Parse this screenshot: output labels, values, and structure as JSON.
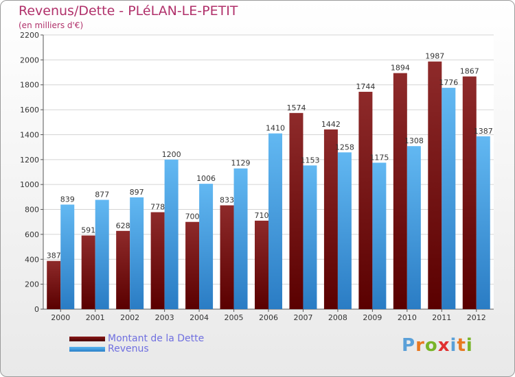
{
  "chart_data": {
    "type": "bar",
    "title": "Revenus/Dette - PLéLAN-LE-PETIT",
    "subtitle": "(en milliers d'€)",
    "categories": [
      "2000",
      "2001",
      "2002",
      "2003",
      "2004",
      "2005",
      "2006",
      "2007",
      "2008",
      "2009",
      "2010",
      "2011",
      "2012"
    ],
    "series": [
      {
        "name": "Montant de la Dette",
        "color": "#7a1010",
        "values": [
          387,
          591,
          628,
          778,
          700,
          833,
          710,
          1574,
          1442,
          1744,
          1894,
          1987,
          1867
        ]
      },
      {
        "name": "Revenus",
        "color": "#3a9de0",
        "values": [
          839,
          877,
          897,
          1200,
          1006,
          1129,
          1410,
          1153,
          1258,
          1175,
          1308,
          1776,
          1387
        ]
      }
    ],
    "ylim": [
      0,
      2200
    ],
    "yticks": [
      0,
      200,
      400,
      600,
      800,
      1000,
      1200,
      1400,
      1600,
      1800,
      2000,
      2200
    ],
    "grid": true,
    "legend_position": "bottom-left"
  },
  "logo": {
    "letters": [
      "P",
      "r",
      "o",
      "x",
      "i",
      "t",
      "i"
    ],
    "colors": [
      "#5aa0d8",
      "#e87820",
      "#78b428",
      "#e03030",
      "#5aa0d8",
      "#e87820",
      "#78b428"
    ]
  }
}
